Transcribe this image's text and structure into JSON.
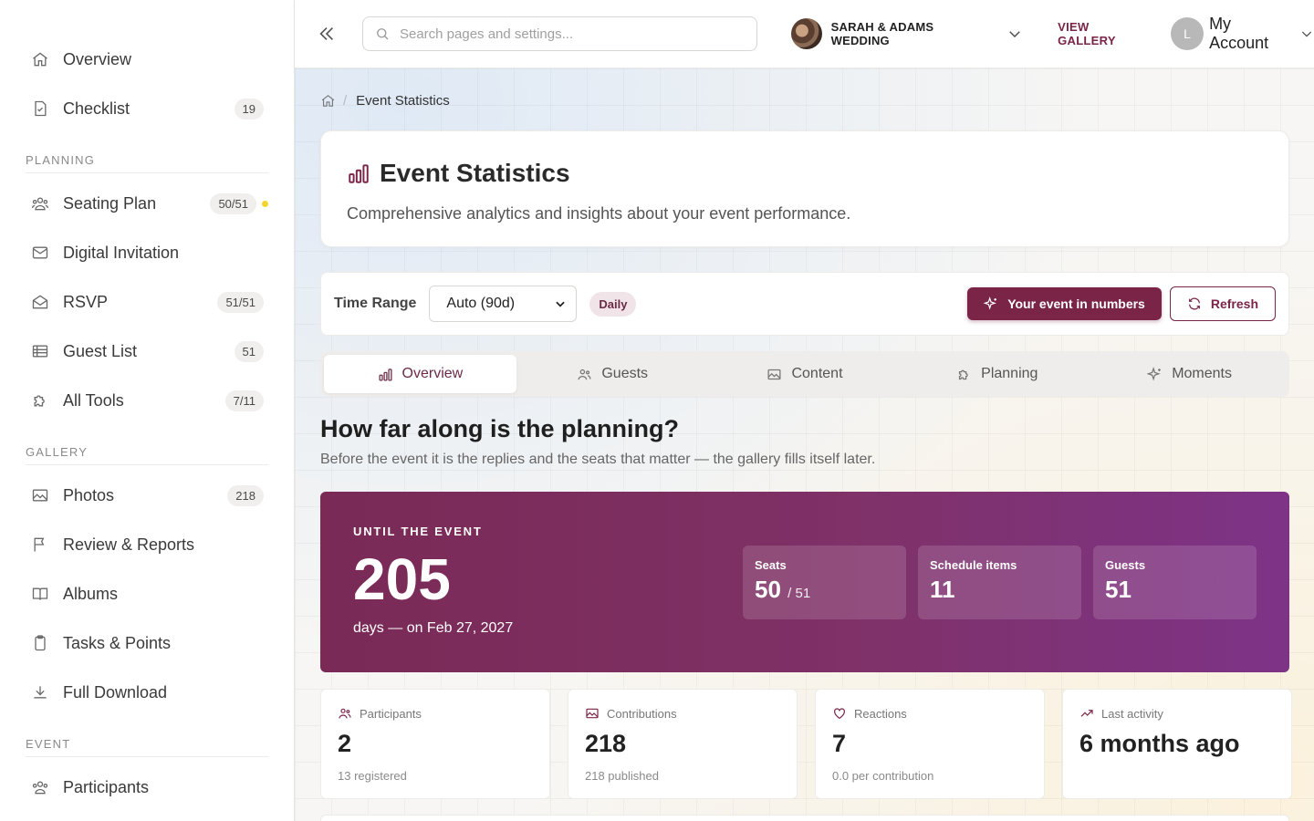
{
  "sidebar": {
    "top_items": [
      {
        "label": "Overview",
        "badge": ""
      },
      {
        "label": "Checklist",
        "badge": "19"
      }
    ],
    "sections": [
      {
        "heading": "PLANNING",
        "items": [
          {
            "label": "Seating Plan",
            "badge": "50/51"
          },
          {
            "label": "Digital Invitation",
            "badge": ""
          },
          {
            "label": "RSVP",
            "badge": "51/51"
          },
          {
            "label": "Guest List",
            "badge": "51"
          },
          {
            "label": "All Tools",
            "badge": "7/11"
          }
        ]
      },
      {
        "heading": "GALLERY",
        "items": [
          {
            "label": "Photos",
            "badge": "218"
          },
          {
            "label": "Review & Reports",
            "badge": ""
          },
          {
            "label": "Albums",
            "badge": ""
          },
          {
            "label": "Tasks & Points",
            "badge": ""
          },
          {
            "label": "Full Download",
            "badge": ""
          }
        ]
      },
      {
        "heading": "EVENT",
        "items": [
          {
            "label": "Participants",
            "badge": ""
          }
        ]
      }
    ],
    "seating_dot_color": "#f5d430"
  },
  "header": {
    "search_placeholder": "Search pages and settings...",
    "event_name": "SARAH & ADAMS WEDDING",
    "view_gallery": "VIEW GALLERY",
    "account_initial": "L",
    "account_label": "My Account"
  },
  "breadcrumb": {
    "current": "Event Statistics"
  },
  "page": {
    "title": "Event Statistics",
    "subtitle": "Comprehensive analytics and insights about your event performance."
  },
  "controls": {
    "time_range_label": "Time Range",
    "time_range_value": "Auto (90d)",
    "granularity": "Daily",
    "numbers_button": "Your event in numbers",
    "refresh_button": "Refresh"
  },
  "tabs": [
    "Overview",
    "Guests",
    "Content",
    "Planning",
    "Moments"
  ],
  "active_tab": "Overview",
  "planning": {
    "title": "How far along is the planning?",
    "subtitle": "Before the event it is the replies and the seats that matter — the gallery fills itself later."
  },
  "countdown": {
    "kicker": "UNTIL THE EVENT",
    "days": "205",
    "note": "days — on Feb 27, 2027",
    "stats": [
      {
        "label": "Seats",
        "value": "50",
        "suffix": "/ 51"
      },
      {
        "label": "Schedule items",
        "value": "11",
        "suffix": ""
      },
      {
        "label": "Guests",
        "value": "51",
        "suffix": ""
      }
    ]
  },
  "kpis": [
    {
      "icon": "users-icon",
      "label": "Participants",
      "value": "2",
      "sub": "13 registered"
    },
    {
      "icon": "image-icon",
      "label": "Contributions",
      "value": "218",
      "sub": "218 published"
    },
    {
      "icon": "heart-icon",
      "label": "Reactions",
      "value": "7",
      "sub": "0.0 per contribution"
    },
    {
      "icon": "trend-icon",
      "label": "Last activity",
      "value": "6 months ago",
      "sub": ""
    }
  ],
  "colors": {
    "accent": "#7a2448",
    "banner_start": "#7a2a55",
    "banner_end": "#7e3387"
  }
}
